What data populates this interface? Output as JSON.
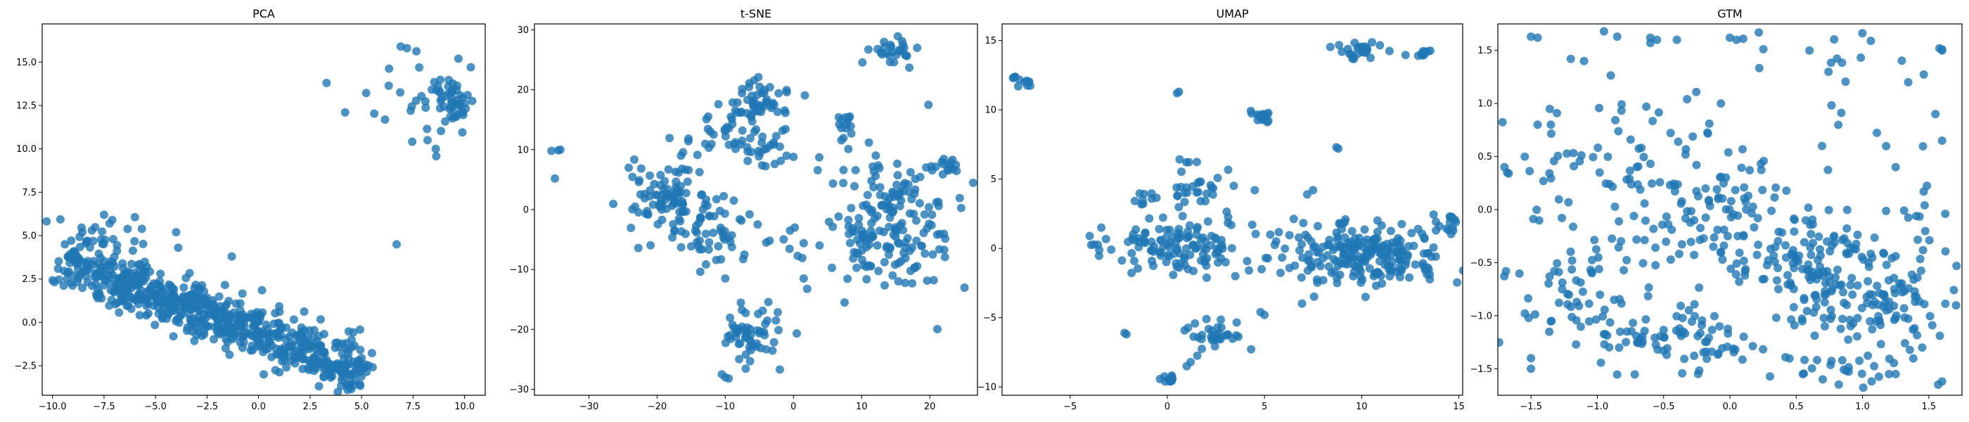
{
  "chart_data": [
    {
      "type": "scatter",
      "title": "PCA",
      "xlim": [
        -10.5,
        11
      ],
      "ylim": [
        -4.2,
        17.2
      ],
      "xticks": [
        -10.0,
        -7.5,
        -5.0,
        -2.5,
        0.0,
        2.5,
        5.0,
        7.5,
        10.0
      ],
      "yticks": [
        -2.5,
        0.0,
        2.5,
        5.0,
        7.5,
        10.0,
        12.5,
        15.0
      ],
      "tick_decimals": 1,
      "color": "#1f77b4",
      "clusters": [
        {
          "kind": "band",
          "x0": -9.5,
          "y0": 3.6,
          "x1": 5.0,
          "y1": -2.9,
          "width": 1.6,
          "n": 700,
          "seed": 11
        },
        {
          "kind": "blob",
          "cx": 9.5,
          "cy": 12.8,
          "sx": 0.6,
          "sy": 0.6,
          "n": 45,
          "seed": 12
        },
        {
          "kind": "blob",
          "cx": 7.5,
          "cy": 12.5,
          "sx": 1.4,
          "sy": 1.5,
          "n": 20,
          "seed": 13
        },
        {
          "kind": "blob",
          "cx": -6.5,
          "cy": 5.2,
          "sx": 1.3,
          "sy": 0.5,
          "n": 18,
          "seed": 14
        }
      ],
      "points": [
        [
          6.7,
          4.5
        ],
        [
          3.3,
          13.8
        ],
        [
          4.2,
          12.1
        ],
        [
          6.9,
          15.9
        ],
        [
          7.2,
          15.8
        ],
        [
          9.7,
          15.2
        ],
        [
          10.3,
          14.7
        ],
        [
          8.6,
          10.0
        ],
        [
          8.2,
          10.5
        ],
        [
          -4.0,
          5.2
        ],
        [
          -3.9,
          4.3
        ],
        [
          -9.4,
          4.5
        ],
        [
          -7.1,
          5.9
        ],
        [
          -7.5,
          6.2
        ],
        [
          -1.3,
          3.8
        ]
      ]
    },
    {
      "type": "scatter",
      "title": "t-SNE",
      "xlim": [
        -38,
        27
      ],
      "ylim": [
        -31,
        31
      ],
      "xticks": [
        -30,
        -20,
        -10,
        0,
        10,
        20
      ],
      "yticks": [
        -30,
        -20,
        -10,
        0,
        10,
        20,
        30
      ],
      "tick_decimals": 0,
      "color": "#1f77b4",
      "clusters": [
        {
          "kind": "blob",
          "cx": 14,
          "cy": -3,
          "sx": 5,
          "sy": 5.5,
          "n": 190,
          "seed": 21
        },
        {
          "kind": "blob",
          "cx": -19,
          "cy": 2,
          "sx": 2.5,
          "sy": 3,
          "n": 90,
          "seed": 22
        },
        {
          "kind": "blob",
          "cx": -11,
          "cy": -4,
          "sx": 2.5,
          "sy": 2.5,
          "n": 50,
          "seed": 23
        },
        {
          "kind": "blob",
          "cx": -6,
          "cy": 17,
          "sx": 2.5,
          "sy": 2.5,
          "n": 60,
          "seed": 24
        },
        {
          "kind": "blob",
          "cx": -6,
          "cy": -21,
          "sx": 2,
          "sy": 2,
          "n": 55,
          "seed": 25
        },
        {
          "kind": "blob",
          "cx": 15,
          "cy": 27,
          "sx": 2,
          "sy": 1.2,
          "n": 25,
          "seed": 26
        },
        {
          "kind": "blob",
          "cx": -12,
          "cy": 12.5,
          "sx": 4,
          "sy": 2,
          "n": 25,
          "seed": 27
        },
        {
          "kind": "blob",
          "cx": 23,
          "cy": 7.5,
          "sx": 1.2,
          "sy": 0.8,
          "n": 15,
          "seed": 28
        },
        {
          "kind": "blob",
          "cx": 7,
          "cy": 14,
          "sx": 1.0,
          "sy": 1.5,
          "n": 15,
          "seed": 29
        },
        {
          "kind": "blob",
          "cx": -4.5,
          "cy": 10,
          "sx": 1.5,
          "sy": 2,
          "n": 20,
          "seed": 30
        }
      ],
      "points": [
        [
          -35.5,
          9.8
        ],
        [
          -34.5,
          9.9
        ],
        [
          -34.2,
          10.0
        ],
        [
          -35.0,
          5.2
        ],
        [
          -10.0,
          -28.0
        ],
        [
          -10.5,
          -27.5
        ],
        [
          -2.0,
          -26.7
        ],
        [
          -9.5,
          -28.2
        ],
        [
          19.8,
          17.5
        ],
        [
          17.0,
          23.7
        ],
        [
          13.3,
          28.0
        ],
        [
          -0.5,
          -3.5
        ],
        [
          0.2,
          -3.0
        ],
        [
          -4.0,
          -5.5
        ],
        [
          -3.5,
          -5.2
        ],
        [
          1.5,
          -11.5
        ],
        [
          7.5,
          -15.5
        ],
        [
          -10.0,
          -11.5
        ],
        [
          0.0,
          8.8
        ],
        [
          -1.0,
          9.0
        ]
      ]
    },
    {
      "type": "scatter",
      "title": "UMAP",
      "xlim": [
        -8.5,
        15.2
      ],
      "ylim": [
        -10.6,
        16.2
      ],
      "xticks": [
        -5,
        0,
        5,
        10,
        15
      ],
      "yticks": [
        -10,
        -5,
        0,
        5,
        10,
        15
      ],
      "tick_decimals": 0,
      "color": "#1f77b4",
      "clusters": [
        {
          "kind": "blob",
          "cx": 10,
          "cy": -0.5,
          "sx": 2.3,
          "sy": 1.2,
          "n": 230,
          "seed": 31
        },
        {
          "kind": "blob",
          "cx": 1.2,
          "cy": 0.3,
          "sx": 1.8,
          "sy": 1.0,
          "n": 90,
          "seed": 32
        },
        {
          "kind": "blob",
          "cx": -1.5,
          "cy": -0.2,
          "sx": 1.3,
          "sy": 0.9,
          "n": 35,
          "seed": 33
        },
        {
          "kind": "blob",
          "cx": 1.5,
          "cy": 4.5,
          "sx": 0.8,
          "sy": 1.0,
          "n": 30,
          "seed": 34
        },
        {
          "kind": "blob",
          "cx": 2.5,
          "cy": -6.2,
          "sx": 0.9,
          "sy": 0.7,
          "n": 35,
          "seed": 35
        },
        {
          "kind": "blob",
          "cx": 9.8,
          "cy": 14.3,
          "sx": 0.6,
          "sy": 0.3,
          "n": 25,
          "seed": 36
        },
        {
          "kind": "blob",
          "cx": -7.5,
          "cy": 12.0,
          "sx": 0.3,
          "sy": 0.2,
          "n": 12,
          "seed": 37
        },
        {
          "kind": "blob",
          "cx": 4.7,
          "cy": 9.5,
          "sx": 0.25,
          "sy": 0.3,
          "n": 15,
          "seed": 38
        },
        {
          "kind": "blob",
          "cx": 0.1,
          "cy": -9.4,
          "sx": 0.2,
          "sy": 0.15,
          "n": 15,
          "seed": 39
        },
        {
          "kind": "blob",
          "cx": 13.0,
          "cy": 14.0,
          "sx": 0.3,
          "sy": 0.2,
          "n": 10,
          "seed": 40
        },
        {
          "kind": "blob",
          "cx": 14.6,
          "cy": 1.8,
          "sx": 0.15,
          "sy": 0.5,
          "n": 12,
          "seed": 41
        },
        {
          "kind": "blob",
          "cx": -1.5,
          "cy": 3.5,
          "sx": 0.5,
          "sy": 0.5,
          "n": 10,
          "seed": 42
        }
      ],
      "points": [
        [
          0.6,
          11.3
        ],
        [
          0.5,
          11.2
        ],
        [
          8.8,
          7.2
        ],
        [
          8.7,
          7.3
        ],
        [
          -2.2,
          -6.1
        ],
        [
          -2.1,
          -6.2
        ],
        [
          5.0,
          -4.8
        ],
        [
          4.8,
          -4.6
        ],
        [
          1.0,
          -8.5
        ],
        [
          1.2,
          -8.2
        ],
        [
          5.3,
          1.0
        ],
        [
          5.6,
          0.5
        ],
        [
          4.5,
          4.2
        ],
        [
          5.0,
          9.6
        ],
        [
          5.2,
          9.2
        ],
        [
          10.2,
          -3.5
        ],
        [
          7.2,
          3.9
        ],
        [
          7.5,
          4.2
        ],
        [
          3.0,
          -1.0
        ],
        [
          3.5,
          -2.0
        ]
      ]
    },
    {
      "type": "scatter",
      "title": "GTM",
      "xlim": [
        -1.75,
        1.75
      ],
      "ylim": [
        -1.75,
        1.75
      ],
      "xticks": [
        -1.5,
        -1.0,
        -0.5,
        0.0,
        0.5,
        1.0,
        1.5
      ],
      "yticks": [
        -1.5,
        -1.0,
        -0.5,
        0.0,
        0.5,
        1.0,
        1.5
      ],
      "tick_decimals": 1,
      "color": "#1f77b4",
      "clusters": [
        {
          "kind": "blob",
          "cx": 0.75,
          "cy": -0.65,
          "sx": 0.25,
          "sy": 0.3,
          "n": 140,
          "seed": 51
        },
        {
          "kind": "blob",
          "cx": -0.4,
          "cy": -1.25,
          "sx": 0.3,
          "sy": 0.15,
          "n": 80,
          "seed": 52
        },
        {
          "kind": "blob",
          "cx": 1.3,
          "cy": -0.9,
          "sx": 0.2,
          "sy": 0.2,
          "n": 50,
          "seed": 53
        },
        {
          "kind": "blob",
          "cx": -1.2,
          "cy": -0.7,
          "sx": 0.3,
          "sy": 0.3,
          "n": 60,
          "seed": 54
        },
        {
          "kind": "blob",
          "cx": -0.3,
          "cy": 0.2,
          "sx": 0.35,
          "sy": 0.35,
          "n": 80,
          "seed": 55
        },
        {
          "kind": "blob",
          "cx": 0.0,
          "cy": -0.3,
          "sx": 0.35,
          "sy": 0.25,
          "n": 70,
          "seed": 56
        },
        {
          "kind": "blob",
          "cx": -1.2,
          "cy": 0.3,
          "sx": 0.3,
          "sy": 0.4,
          "n": 40,
          "seed": 57
        },
        {
          "kind": "blob",
          "cx": 0.7,
          "cy": 1.2,
          "sx": 0.3,
          "sy": 0.3,
          "n": 25,
          "seed": 58
        },
        {
          "kind": "blob",
          "cx": 0.9,
          "cy": -1.5,
          "sx": 0.3,
          "sy": 0.08,
          "n": 25,
          "seed": 59
        },
        {
          "kind": "blob",
          "cx": 1.45,
          "cy": -0.2,
          "sx": 0.15,
          "sy": 0.4,
          "n": 20,
          "seed": 60
        }
      ],
      "points": [
        [
          -1.5,
          1.63
        ],
        [
          -1.45,
          1.62
        ],
        [
          -0.95,
          1.68
        ],
        [
          -0.85,
          1.63
        ],
        [
          -0.6,
          1.62
        ],
        [
          -0.55,
          1.6
        ],
        [
          -0.6,
          1.57
        ],
        [
          -0.4,
          1.6
        ],
        [
          0.0,
          1.62
        ],
        [
          0.1,
          1.61
        ],
        [
          0.05,
          1.6
        ],
        [
          1.58,
          1.52
        ],
        [
          1.6,
          1.5
        ],
        [
          1.6,
          1.51
        ],
        [
          0.6,
          1.5
        ],
        [
          -1.7,
          0.4
        ],
        [
          -1.68,
          0.35
        ],
        [
          -1.45,
          0.8
        ],
        [
          -1.35,
          0.8
        ],
        [
          -1.2,
          1.42
        ],
        [
          -1.1,
          1.4
        ],
        [
          1.25,
          0.4
        ],
        [
          1.55,
          0.9
        ],
        [
          1.6,
          0.65
        ],
        [
          1.2,
          -1.55
        ],
        [
          1.25,
          -1.55
        ],
        [
          1.57,
          -1.65
        ],
        [
          1.6,
          -1.62
        ],
        [
          -1.5,
          -1.4
        ],
        [
          -1.5,
          -1.5
        ],
        [
          0.7,
          -1.6
        ],
        [
          0.55,
          -1.55
        ]
      ]
    }
  ]
}
